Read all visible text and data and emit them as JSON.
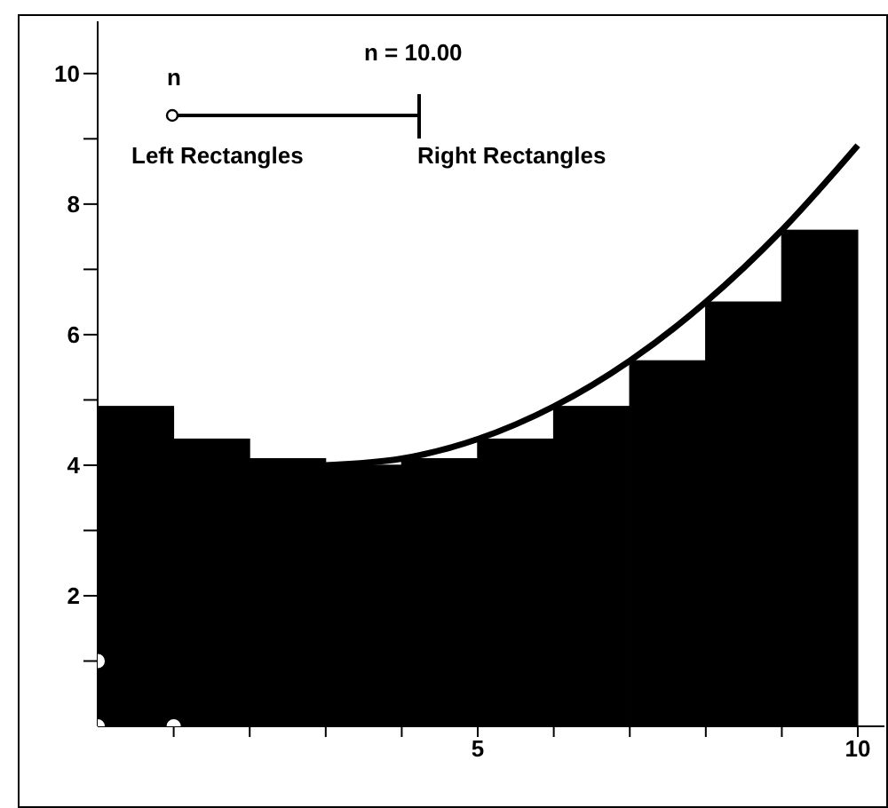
{
  "chart_data": {
    "type": "histogram",
    "bins": [
      0,
      1,
      2,
      3,
      4,
      5,
      6,
      7,
      8,
      9,
      10
    ],
    "xlim": [
      0,
      10.35
    ],
    "ylim": [
      0,
      10.8
    ],
    "xticks": [
      {
        "value": 1,
        "label": null
      },
      {
        "value": 2,
        "label": null
      },
      {
        "value": 3,
        "label": null
      },
      {
        "value": 4,
        "label": null
      },
      5,
      {
        "value": 6,
        "label": null
      },
      {
        "value": 7,
        "label": null
      },
      {
        "value": 8,
        "label": null
      },
      {
        "value": 9,
        "label": null
      },
      10
    ],
    "yticks": [
      {
        "value": 1,
        "label": null
      },
      2,
      {
        "value": 3,
        "label": null
      },
      4,
      {
        "value": 5,
        "label": null
      },
      6,
      {
        "value": 7,
        "label": null
      },
      8,
      {
        "value": 9,
        "label": null
      },
      10
    ],
    "annotations": [
      "n = 10.00",
      "n",
      "Left Rectangles",
      "Right Rectangles"
    ],
    "series": [
      {
        "color": "#000000",
        "values": [
          4.9,
          4.4,
          4.1,
          4.0,
          4.1,
          4.4,
          4.9,
          5.6,
          6.5,
          7.6
        ]
      },
      {
        "type": "line",
        "color": "#000000",
        "marker": "none",
        "x": [
          3,
          4,
          5,
          6,
          7,
          8,
          9,
          10
        ],
        "values": [
          4.0,
          4.1,
          4.4,
          4.9,
          5.6,
          6.5,
          7.6,
          8.9
        ]
      },
      {
        "type": "scatter",
        "color": "#ffffff",
        "marker": "circle",
        "x": [
          0,
          0,
          1
        ],
        "values": [
          0,
          1,
          0
        ]
      }
    ],
    "grid": false,
    "legend": false
  }
}
